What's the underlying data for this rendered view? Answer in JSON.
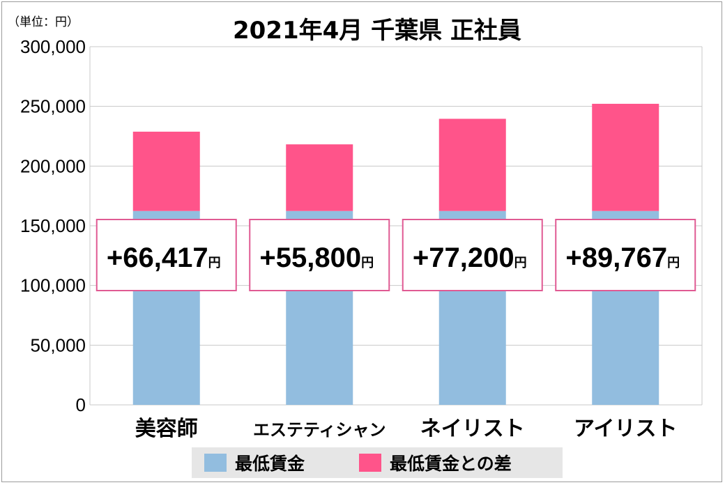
{
  "chart_data": {
    "type": "bar",
    "stacked": true,
    "title": "2021年4月 千葉県 正社員",
    "unit_label": "（単位：円）",
    "categories": [
      "美容師",
      "エステティシャン",
      "ネイリスト",
      "アイリスト"
    ],
    "series": [
      {
        "name": "最低賃金",
        "color": "#92bddf",
        "values": [
          162400,
          162400,
          162400,
          162400
        ]
      },
      {
        "name": "最低賃金との差",
        "color": "#ff548a",
        "values": [
          66417,
          55800,
          77200,
          89767
        ]
      }
    ],
    "diff_labels": [
      "+66,417",
      "+55,800",
      "+77,200",
      "+89,767"
    ],
    "diff_unit": "円",
    "ylim": [
      0,
      300000
    ],
    "yticks": [
      0,
      50000,
      100000,
      150000,
      200000,
      250000,
      300000
    ],
    "ytick_labels": [
      "0",
      "50,000",
      "100,000",
      "150,000",
      "200,000",
      "250,000",
      "300,000"
    ],
    "grid": true,
    "legend_position": "bottom",
    "colors": {
      "label_box_border": "#e05a93",
      "grid": "#c8c8c8",
      "legend_bg": "#e6e6e6"
    }
  }
}
